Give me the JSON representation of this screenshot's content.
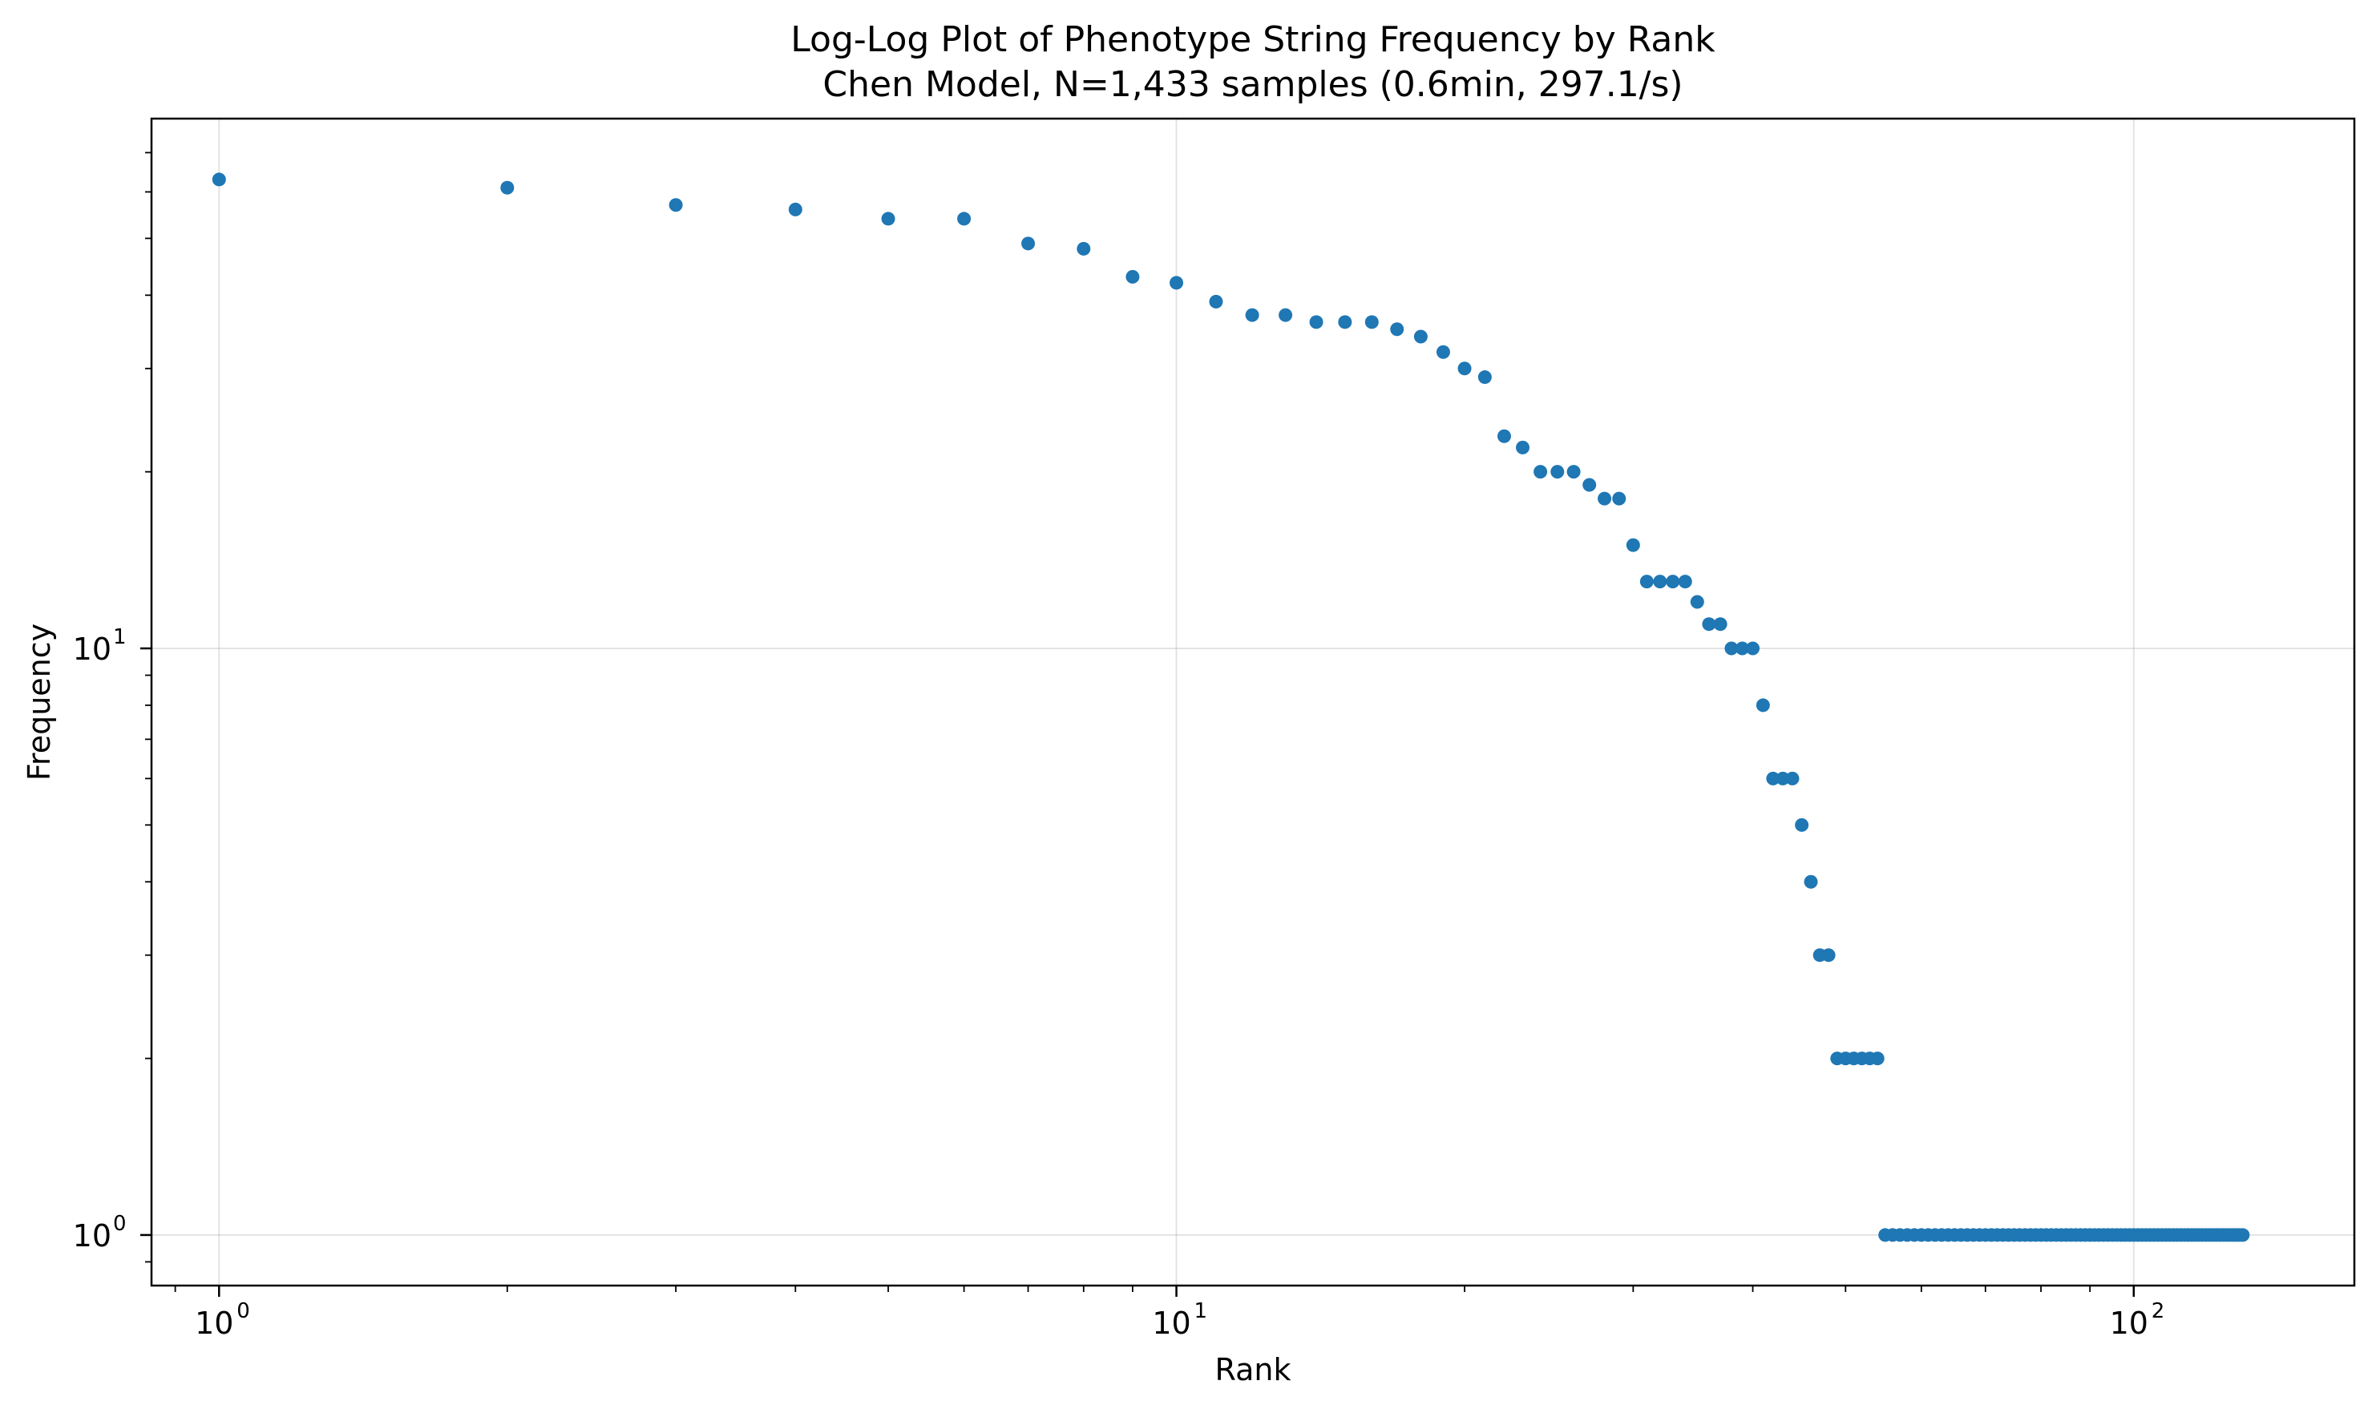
{
  "chart_data": {
    "type": "scatter",
    "title": "Log-Log Plot of Phenotype String Frequency by Rank",
    "subtitle": "Chen Model, N=1,433 samples (0.6min, 297.1/s)",
    "xlabel": "Rank",
    "ylabel": "Frequency",
    "x_scale": "log",
    "y_scale": "log",
    "xlim": [
      0.85,
      170
    ],
    "ylim": [
      0.82,
      80
    ],
    "grid": true,
    "color": "#1f77b4",
    "x_ticks": [
      {
        "value": 1,
        "base": "10",
        "exp": "0"
      },
      {
        "value": 10,
        "base": "10",
        "exp": "1"
      },
      {
        "value": 100,
        "base": "10",
        "exp": "2"
      }
    ],
    "y_ticks": [
      {
        "value": 1,
        "base": "10",
        "exp": "0"
      },
      {
        "value": 10,
        "base": "10",
        "exp": "1"
      }
    ],
    "points": [
      {
        "x": 1,
        "y": 63
      },
      {
        "x": 2,
        "y": 61
      },
      {
        "x": 3,
        "y": 57
      },
      {
        "x": 4,
        "y": 56
      },
      {
        "x": 5,
        "y": 54
      },
      {
        "x": 6,
        "y": 54
      },
      {
        "x": 7,
        "y": 49
      },
      {
        "x": 8,
        "y": 48
      },
      {
        "x": 9,
        "y": 43
      },
      {
        "x": 10,
        "y": 42
      },
      {
        "x": 11,
        "y": 39
      },
      {
        "x": 12,
        "y": 37
      },
      {
        "x": 13,
        "y": 37
      },
      {
        "x": 14,
        "y": 36
      },
      {
        "x": 15,
        "y": 36
      },
      {
        "x": 16,
        "y": 36
      },
      {
        "x": 17,
        "y": 35
      },
      {
        "x": 18,
        "y": 34
      },
      {
        "x": 19,
        "y": 32
      },
      {
        "x": 20,
        "y": 30
      },
      {
        "x": 21,
        "y": 29
      },
      {
        "x": 22,
        "y": 23
      },
      {
        "x": 23,
        "y": 22
      },
      {
        "x": 24,
        "y": 20
      },
      {
        "x": 25,
        "y": 20
      },
      {
        "x": 26,
        "y": 20
      },
      {
        "x": 27,
        "y": 19
      },
      {
        "x": 28,
        "y": 18
      },
      {
        "x": 29,
        "y": 18
      },
      {
        "x": 30,
        "y": 15
      },
      {
        "x": 31,
        "y": 13
      },
      {
        "x": 32,
        "y": 13
      },
      {
        "x": 33,
        "y": 13
      },
      {
        "x": 34,
        "y": 13
      },
      {
        "x": 35,
        "y": 12
      },
      {
        "x": 36,
        "y": 11
      },
      {
        "x": 37,
        "y": 11
      },
      {
        "x": 38,
        "y": 10
      },
      {
        "x": 39,
        "y": 10
      },
      {
        "x": 40,
        "y": 10
      },
      {
        "x": 41,
        "y": 8
      },
      {
        "x": 42,
        "y": 6
      },
      {
        "x": 43,
        "y": 6
      },
      {
        "x": 44,
        "y": 6
      },
      {
        "x": 45,
        "y": 5
      },
      {
        "x": 46,
        "y": 4
      },
      {
        "x": 47,
        "y": 3
      },
      {
        "x": 48,
        "y": 3
      },
      {
        "x": 49,
        "y": 2
      },
      {
        "x": 50,
        "y": 2
      },
      {
        "x": 51,
        "y": 2
      },
      {
        "x": 52,
        "y": 2
      },
      {
        "x": 53,
        "y": 2
      },
      {
        "x": 54,
        "y": 2
      }
    ],
    "tail": {
      "x_start": 55,
      "x_end": 130,
      "y": 1
    }
  }
}
